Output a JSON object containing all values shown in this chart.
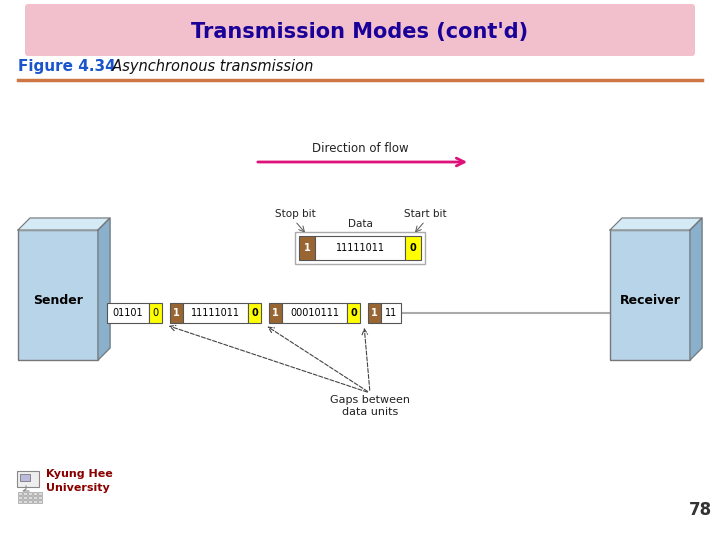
{
  "title": "Transmission Modes (cont'd)",
  "title_bg": "#f2c0cc",
  "title_color": "#1a0099",
  "figure_label": "Figure 4.34",
  "figure_label_color": "#1a55cc",
  "figure_subtitle": "  Asynchronous transmission",
  "figure_subtitle_color": "#111111",
  "separator_color": "#cc7744",
  "background_color": "#ffffff",
  "page_number": "78",
  "direction_label": "Direction of flow",
  "arrow_color": "#dd1177",
  "gaps_label": "Gaps between\ndata units",
  "sender_label": "Sender",
  "receiver_label": "Receiver",
  "stop_bit_label": "Stop bit",
  "start_bit_label": "Start bit",
  "data_label": "Data",
  "box_face": "#b8d4e8",
  "box_top": "#d4eaf5",
  "box_side": "#8ab0cc",
  "yellow_color": "#ffff00",
  "brown_color": "#996633",
  "footer_text_color": "#880000",
  "page_num_color": "#333333",
  "gap_arrow_color": "#444444",
  "label_color": "#222222"
}
